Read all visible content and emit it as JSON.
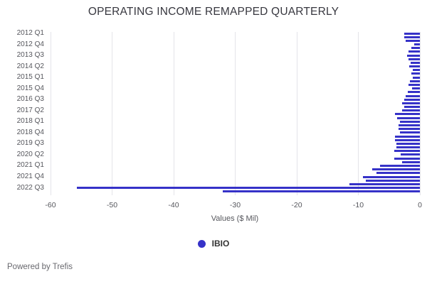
{
  "title": "OPERATING INCOME REMAPPED QUARTERLY",
  "footer": {
    "text": "Powered by Trefis"
  },
  "colors": {
    "bar": "#3632c8",
    "grid": "#e4e4e9",
    "title_text": "#37373f",
    "tick_text": "#55565c",
    "background": "#ffffff"
  },
  "chart_data": {
    "type": "bar",
    "orientation": "horizontal",
    "title": "OPERATING INCOME REMAPPED QUARTERLY",
    "xlabel": "Values ($ Mil)",
    "ylabel": "",
    "xlim": [
      -60,
      0
    ],
    "xticks": [
      -60,
      -50,
      -40,
      -30,
      -20,
      -10,
      0
    ],
    "grid": true,
    "legend_position": "bottom",
    "ytick_label_every": 3,
    "categories": [
      "2012 Q1",
      "2012 Q2",
      "2012 Q3",
      "2012 Q4",
      "2013 Q1",
      "2013 Q2",
      "2013 Q3",
      "2013 Q4",
      "2014 Q1",
      "2014 Q2",
      "2014 Q3",
      "2014 Q4",
      "2015 Q1",
      "2015 Q2",
      "2015 Q3",
      "2015 Q4",
      "2016 Q1",
      "2016 Q2",
      "2016 Q3",
      "2016 Q4",
      "2017 Q1",
      "2017 Q2",
      "2017 Q3",
      "2017 Q4",
      "2018 Q1",
      "2018 Q2",
      "2018 Q3",
      "2018 Q4",
      "2019 Q1",
      "2019 Q2",
      "2019 Q3",
      "2019 Q4",
      "2020 Q1",
      "2020 Q2",
      "2020 Q3",
      "2020 Q4",
      "2021 Q1",
      "2021 Q2",
      "2021 Q3",
      "2021 Q4",
      "2022 Q1",
      "2022 Q2",
      "2022 Q3",
      "2022 Q4"
    ],
    "series": [
      {
        "name": "IBIO",
        "color": "#3632c8",
        "values": [
          -2.5,
          -2.5,
          -2.3,
          -0.9,
          -1.4,
          -1.9,
          -2.1,
          -1.9,
          -1.5,
          -1.7,
          -1.2,
          -1.4,
          -1.2,
          -1.6,
          -1.9,
          -1.3,
          -2.0,
          -2.3,
          -2.5,
          -2.9,
          -2.5,
          -2.9,
          -4.0,
          -3.7,
          -3.2,
          -3.5,
          -3.5,
          -3.2,
          -4.0,
          -4.0,
          -3.8,
          -3.8,
          -4.2,
          -3.1,
          -4.2,
          -2.9,
          -6.5,
          -7.8,
          -7.1,
          -9.2,
          -8.8,
          -11.5,
          -55.7,
          -32.0
        ]
      }
    ]
  }
}
